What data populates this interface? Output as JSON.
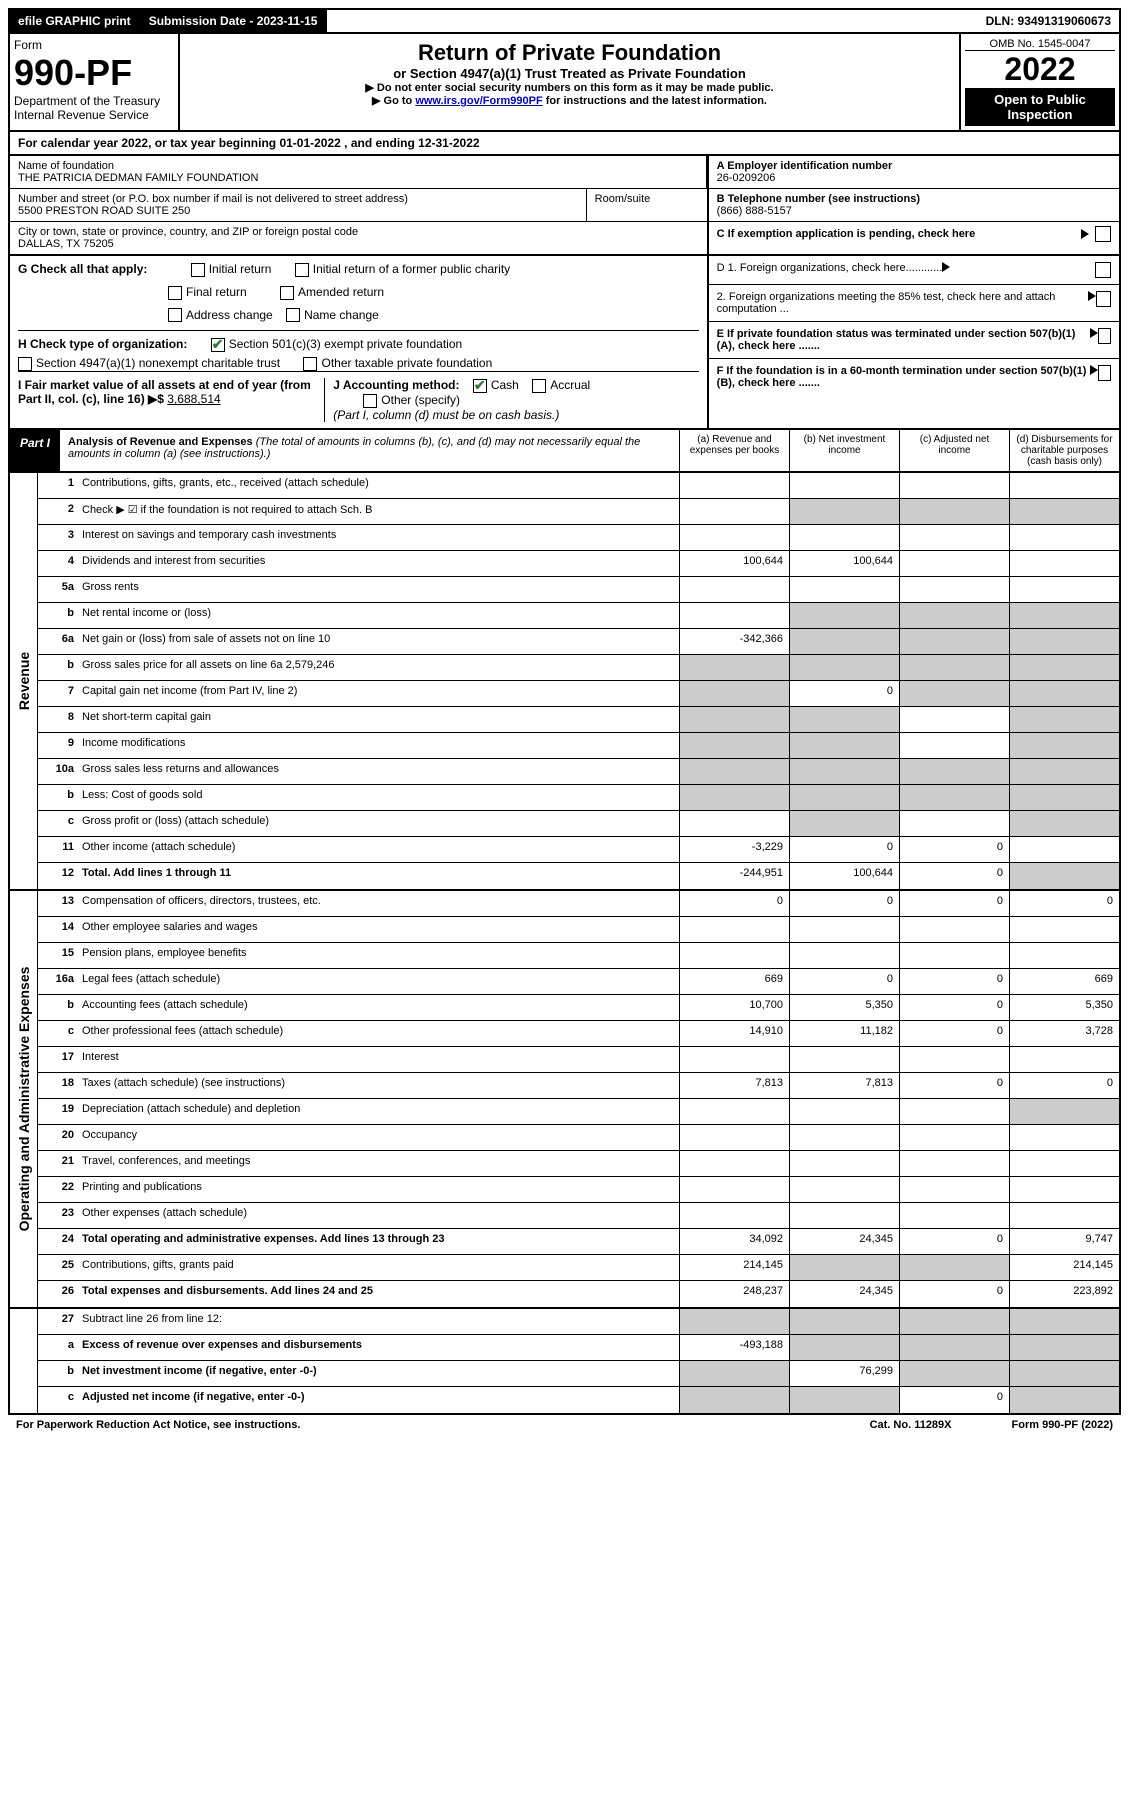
{
  "top": {
    "efile": "efile GRAPHIC print",
    "subdate_label": "Submission Date - 2023-11-15",
    "dln": "DLN: 93491319060673"
  },
  "header": {
    "form_word": "Form",
    "form_no": "990-PF",
    "dept": "Department of the Treasury",
    "irs": "Internal Revenue Service",
    "title": "Return of Private Foundation",
    "subtitle": "or Section 4947(a)(1) Trust Treated as Private Foundation",
    "note1": "▶ Do not enter social security numbers on this form as it may be made public.",
    "note2_pre": "▶ Go to ",
    "note2_link": "www.irs.gov/Form990PF",
    "note2_post": " for instructions and the latest information.",
    "omb": "OMB No. 1545-0047",
    "year": "2022",
    "inspection": "Open to Public Inspection"
  },
  "band": "For calendar year 2022, or tax year beginning 01-01-2022                 , and ending 12-31-2022",
  "foundation": {
    "name_label": "Name of foundation",
    "name": "THE PATRICIA DEDMAN FAMILY FOUNDATION",
    "addr_label": "Number and street (or P.O. box number if mail is not delivered to street address)",
    "addr": "5500 PRESTON ROAD SUITE 250",
    "room_label": "Room/suite",
    "city_label": "City or town, state or province, country, and ZIP or foreign postal code",
    "city": "DALLAS, TX  75205",
    "ein_label": "A Employer identification number",
    "ein": "26-0209206",
    "phone_label": "B Telephone number (see instructions)",
    "phone": "(866) 888-5157",
    "c_label": "C If exemption application is pending, check here"
  },
  "g": {
    "label": "G Check all that apply:",
    "initial": "Initial return",
    "final": "Final return",
    "addrchg": "Address change",
    "initial_former": "Initial return of a former public charity",
    "amended": "Amended return",
    "namechg": "Name change"
  },
  "d": {
    "d1": "D 1. Foreign organizations, check here............",
    "d2": "2. Foreign organizations meeting the 85% test, check here and attach computation ..."
  },
  "h": {
    "label": "H Check type of organization:",
    "opt1": "Section 501(c)(3) exempt private foundation",
    "opt2": "Section 4947(a)(1) nonexempt charitable trust",
    "opt3": "Other taxable private foundation"
  },
  "e": "E If private foundation status was terminated under section 507(b)(1)(A), check here .......",
  "i": {
    "label": "I Fair market value of all assets at end of year (from Part II, col. (c), line 16) ▶$ ",
    "value": "3,688,514"
  },
  "j": {
    "label": "J Accounting method:",
    "cash": "Cash",
    "accrual": "Accrual",
    "other": "Other (specify)",
    "note": "(Part I, column (d) must be on cash basis.)"
  },
  "f": "F If the foundation is in a 60-month termination under section 507(b)(1)(B), check here .......",
  "part1": {
    "tag": "Part I",
    "title": "Analysis of Revenue and Expenses",
    "desc": " (The total of amounts in columns (b), (c), and (d) may not necessarily equal the amounts in column (a) (see instructions).)",
    "cols": {
      "a": "(a) Revenue and expenses per books",
      "b": "(b) Net investment income",
      "c": "(c) Adjusted net income",
      "d": "(d) Disbursements for charitable purposes (cash basis only)"
    }
  },
  "sections": {
    "rev": "Revenue",
    "exp": "Operating and Administrative Expenses"
  },
  "rows": [
    {
      "n": "1",
      "l": "Contributions, gifts, grants, etc., received (attach schedule)",
      "a": "",
      "b": "",
      "c": "",
      "d": ""
    },
    {
      "n": "2",
      "l": "Check ▶ ☑ if the foundation is not required to attach Sch. B",
      "a": "",
      "b": "",
      "c": "",
      "d": "",
      "greyBCD": true
    },
    {
      "n": "3",
      "l": "Interest on savings and temporary cash investments",
      "a": "",
      "b": "",
      "c": "",
      "d": ""
    },
    {
      "n": "4",
      "l": "Dividends and interest from securities",
      "a": "100,644",
      "b": "100,644",
      "c": "",
      "d": ""
    },
    {
      "n": "5a",
      "l": "Gross rents",
      "a": "",
      "b": "",
      "c": "",
      "d": ""
    },
    {
      "n": "b",
      "l": "Net rental income or (loss)",
      "a": "",
      "b": "",
      "c": "",
      "d": "",
      "greyBCD": true
    },
    {
      "n": "6a",
      "l": "Net gain or (loss) from sale of assets not on line 10",
      "a": "-342,366",
      "b": "",
      "c": "",
      "d": "",
      "greyBCD": true
    },
    {
      "n": "b",
      "l": "Gross sales price for all assets on line 6a          2,579,246",
      "a": "",
      "b": "",
      "c": "",
      "d": "",
      "greyAll": true
    },
    {
      "n": "7",
      "l": "Capital gain net income (from Part IV, line 2)",
      "a": "",
      "b": "0",
      "c": "",
      "d": "",
      "greyA": true,
      "greyCD": true
    },
    {
      "n": "8",
      "l": "Net short-term capital gain",
      "a": "",
      "b": "",
      "c": "",
      "d": "",
      "greyAB": true,
      "greyD": true
    },
    {
      "n": "9",
      "l": "Income modifications",
      "a": "",
      "b": "",
      "c": "",
      "d": "",
      "greyAB": true,
      "greyD": true
    },
    {
      "n": "10a",
      "l": "Gross sales less returns and allowances",
      "a": "",
      "b": "",
      "c": "",
      "d": "",
      "greyAll": true
    },
    {
      "n": "b",
      "l": "Less: Cost of goods sold",
      "a": "",
      "b": "",
      "c": "",
      "d": "",
      "greyAll": true
    },
    {
      "n": "c",
      "l": "Gross profit or (loss) (attach schedule)",
      "a": "",
      "b": "",
      "c": "",
      "d": "",
      "greyB": true,
      "greyD": true
    },
    {
      "n": "11",
      "l": "Other income (attach schedule)",
      "a": "-3,229",
      "b": "0",
      "c": "0",
      "d": ""
    },
    {
      "n": "12",
      "l": "Total. Add lines 1 through 11",
      "a": "-244,951",
      "b": "100,644",
      "c": "0",
      "d": "",
      "bold": true,
      "greyD": true
    }
  ],
  "exprows": [
    {
      "n": "13",
      "l": "Compensation of officers, directors, trustees, etc.",
      "a": "0",
      "b": "0",
      "c": "0",
      "d": "0"
    },
    {
      "n": "14",
      "l": "Other employee salaries and wages",
      "a": "",
      "b": "",
      "c": "",
      "d": ""
    },
    {
      "n": "15",
      "l": "Pension plans, employee benefits",
      "a": "",
      "b": "",
      "c": "",
      "d": ""
    },
    {
      "n": "16a",
      "l": "Legal fees (attach schedule)",
      "a": "669",
      "b": "0",
      "c": "0",
      "d": "669"
    },
    {
      "n": "b",
      "l": "Accounting fees (attach schedule)",
      "a": "10,700",
      "b": "5,350",
      "c": "0",
      "d": "5,350"
    },
    {
      "n": "c",
      "l": "Other professional fees (attach schedule)",
      "a": "14,910",
      "b": "11,182",
      "c": "0",
      "d": "3,728"
    },
    {
      "n": "17",
      "l": "Interest",
      "a": "",
      "b": "",
      "c": "",
      "d": ""
    },
    {
      "n": "18",
      "l": "Taxes (attach schedule) (see instructions)",
      "a": "7,813",
      "b": "7,813",
      "c": "0",
      "d": "0"
    },
    {
      "n": "19",
      "l": "Depreciation (attach schedule) and depletion",
      "a": "",
      "b": "",
      "c": "",
      "d": "",
      "greyD": true
    },
    {
      "n": "20",
      "l": "Occupancy",
      "a": "",
      "b": "",
      "c": "",
      "d": ""
    },
    {
      "n": "21",
      "l": "Travel, conferences, and meetings",
      "a": "",
      "b": "",
      "c": "",
      "d": ""
    },
    {
      "n": "22",
      "l": "Printing and publications",
      "a": "",
      "b": "",
      "c": "",
      "d": ""
    },
    {
      "n": "23",
      "l": "Other expenses (attach schedule)",
      "a": "",
      "b": "",
      "c": "",
      "d": ""
    },
    {
      "n": "24",
      "l": "Total operating and administrative expenses. Add lines 13 through 23",
      "a": "34,092",
      "b": "24,345",
      "c": "0",
      "d": "9,747",
      "bold": true
    },
    {
      "n": "25",
      "l": "Contributions, gifts, grants paid",
      "a": "214,145",
      "b": "",
      "c": "",
      "d": "214,145",
      "greyBC": true
    },
    {
      "n": "26",
      "l": "Total expenses and disbursements. Add lines 24 and 25",
      "a": "248,237",
      "b": "24,345",
      "c": "0",
      "d": "223,892",
      "bold": true
    }
  ],
  "sumrows": [
    {
      "n": "27",
      "l": "Subtract line 26 from line 12:",
      "a": "",
      "b": "",
      "c": "",
      "d": "",
      "greyAll": true
    },
    {
      "n": "a",
      "l": "Excess of revenue over expenses and disbursements",
      "a": "-493,188",
      "b": "",
      "c": "",
      "d": "",
      "bold": true,
      "greyBCD": true
    },
    {
      "n": "b",
      "l": "Net investment income (if negative, enter -0-)",
      "a": "",
      "b": "76,299",
      "c": "",
      "d": "",
      "bold": true,
      "greyA": true,
      "greyCD": true
    },
    {
      "n": "c",
      "l": "Adjusted net income (if negative, enter -0-)",
      "a": "",
      "b": "",
      "c": "0",
      "d": "",
      "bold": true,
      "greyAB": true,
      "greyD": true
    }
  ],
  "footer": {
    "left": "For Paperwork Reduction Act Notice, see instructions.",
    "mid": "Cat. No. 11289X",
    "right": "Form 990-PF (2022)"
  }
}
